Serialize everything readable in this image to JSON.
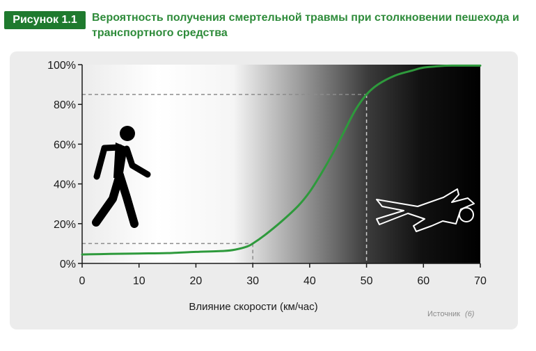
{
  "figure": {
    "label": "Рисунок 1.1",
    "title": "Вероятность получения смертельной травмы при столкновении пешехода и транспортного средства"
  },
  "source": {
    "label": "Источник",
    "ref": "(6)"
  },
  "icons": {
    "left": "walking-pedestrian-icon",
    "right": "fallen-body-outline-icon"
  },
  "colors": {
    "accent_green": "#1f7a2e",
    "title_green": "#2e8b3a",
    "curve_green": "#2e9a3c"
  },
  "chart_data": {
    "type": "line",
    "title": "",
    "xlabel": "Влияние скорости (км/час)",
    "ylabel": "",
    "xlim": [
      0,
      70
    ],
    "ylim": [
      0,
      100
    ],
    "x_ticks": [
      0,
      10,
      20,
      30,
      40,
      50,
      60,
      70
    ],
    "y_ticks": [
      0,
      20,
      40,
      60,
      80,
      100
    ],
    "y_tick_labels": [
      "0%",
      "20%",
      "40%",
      "60%",
      "80%",
      "100%"
    ],
    "background": "gradient from white (low speed) to black (high speed)",
    "grid": false,
    "series": [
      {
        "x": [
          0,
          5,
          10,
          15,
          20,
          25,
          27,
          29,
          30,
          32,
          35,
          38,
          40,
          42,
          44,
          46,
          48,
          50,
          52,
          55,
          58,
          60,
          63,
          65,
          70
        ],
        "y": [
          4.5,
          4.8,
          5,
          5.2,
          5.8,
          6.3,
          7,
          8.5,
          10,
          14,
          21,
          29,
          36,
          45,
          55,
          66,
          77,
          85,
          90,
          94.5,
          97,
          98.5,
          99.3,
          99.5,
          99.5
        ]
      }
    ],
    "reference_lines": [
      {
        "x": 30,
        "y": 10
      },
      {
        "x": 50,
        "y": 85
      }
    ]
  }
}
